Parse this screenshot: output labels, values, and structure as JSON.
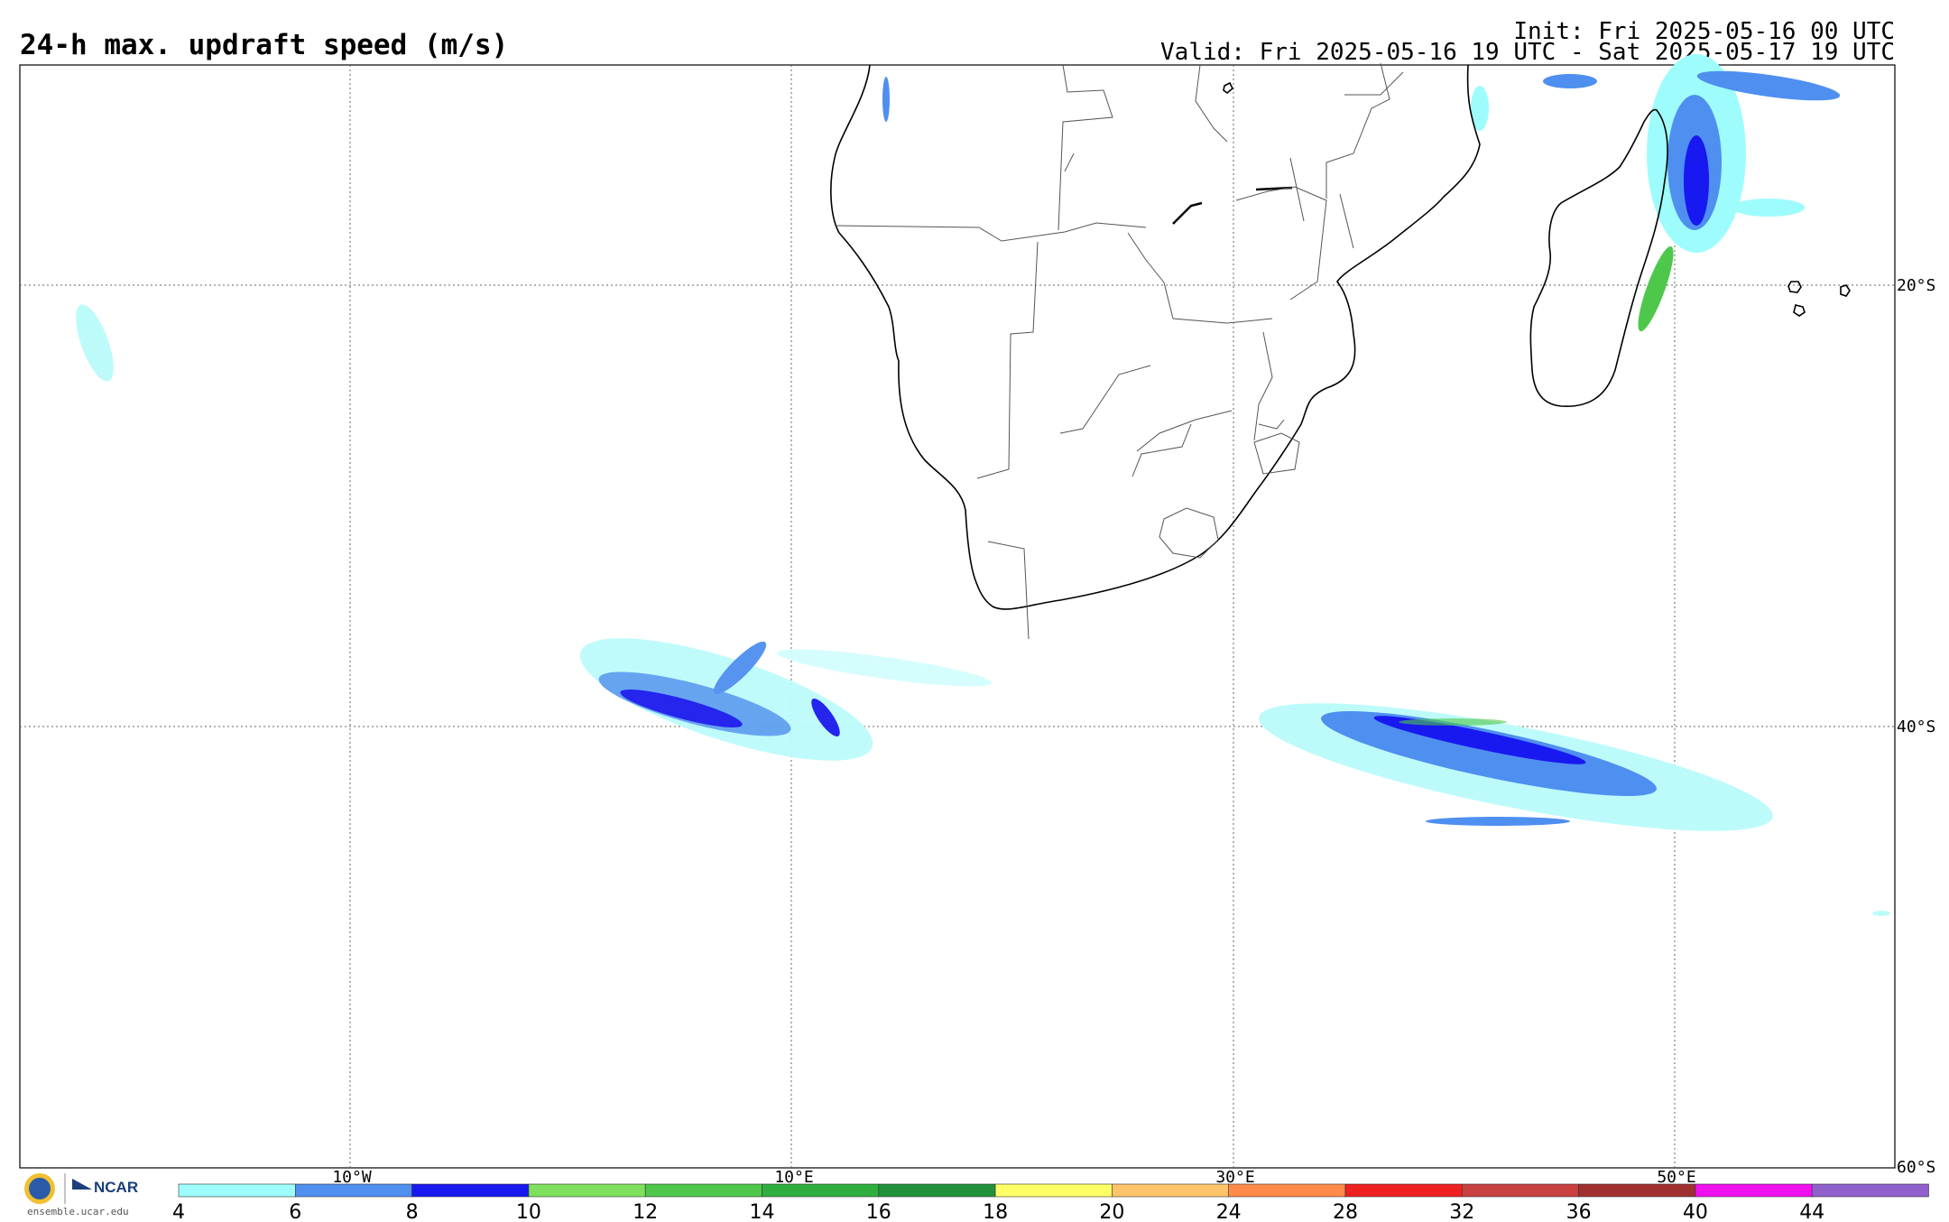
{
  "header": {
    "title": "24-h max. updraft speed (m/s)",
    "init": "Init: Fri 2025-05-16 00 UTC",
    "valid": "Valid: Fri 2025-05-16 19 UTC - Sat 2025-05-17 19 UTC"
  },
  "map": {
    "lon_range": [
      -25,
      60
    ],
    "lat_range": [
      -60,
      -10
    ],
    "lon_gridlines": [
      -10,
      10,
      30,
      50
    ],
    "lat_gridlines": [
      -20,
      -40
    ],
    "lon_labels": [
      "10°W",
      "10°E",
      "30°E",
      "50°E"
    ],
    "lat_labels": [
      "20°S",
      "40°S",
      "60°S"
    ]
  },
  "colorbar": {
    "ticks": [
      "4",
      "6",
      "8",
      "10",
      "12",
      "14",
      "16",
      "18",
      "20",
      "24",
      "28",
      "32",
      "36",
      "40",
      "44"
    ],
    "colors": [
      "#9ffcfc",
      "#4f8ff0",
      "#1818f0",
      "#7ee05c",
      "#4ec84a",
      "#2eae3e",
      "#21913a",
      "#ffff66",
      "#ffc46a",
      "#ff8a4a",
      "#ee2020",
      "#c84040",
      "#a03030",
      "#ee10ee",
      "#9060cc"
    ]
  },
  "footer": {
    "logo_text": "NCAR",
    "url": "ensemble.ucar.edu"
  }
}
